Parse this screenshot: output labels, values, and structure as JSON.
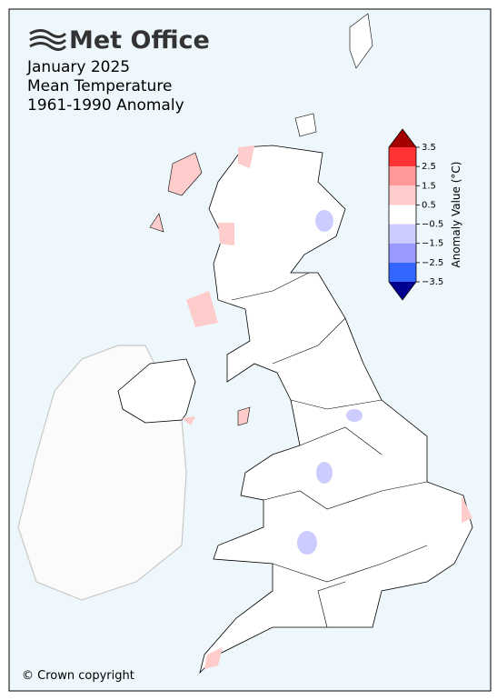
{
  "header": {
    "logo": "Met Office",
    "title_lines": [
      "January 2025",
      "Mean Temperature",
      "1961-1990 Anomaly"
    ]
  },
  "colorbar": {
    "label": "Anomaly Value (°C)",
    "ticks": [
      "3.5",
      "2.5",
      "1.5",
      "0.5",
      "−0.5",
      "−1.5",
      "−2.5",
      "−3.5"
    ],
    "colors": [
      "#ff3333",
      "#ff9999",
      "#ffcccc",
      "#ffffff",
      "#ccccff",
      "#9999ff",
      "#3366ff"
    ],
    "over_color": "#a50000",
    "under_color": "#000090"
  },
  "footer": {
    "copyright": "© Crown copyright"
  }
}
